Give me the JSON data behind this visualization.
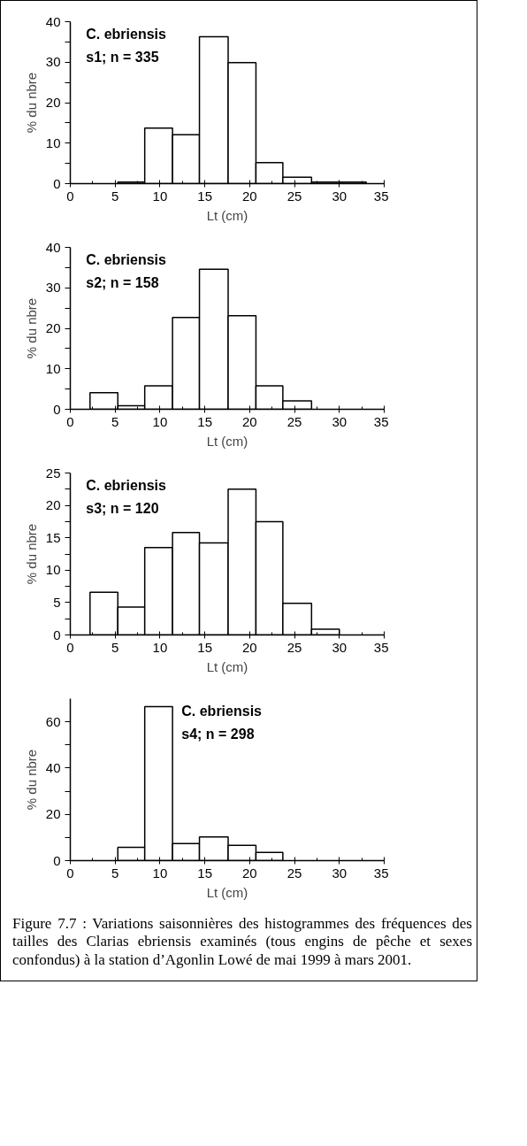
{
  "chart_data": [
    {
      "type": "histogram",
      "xlabel": "Lt (cm)",
      "ylabel": "% du nbre",
      "annotations": [
        "C. ebriensis\ns1; n = 335"
      ],
      "bins": [
        5.3,
        8.3,
        11.4,
        14.4,
        17.6,
        20.7,
        23.7,
        26.9,
        30.0,
        33.0
      ],
      "values": [
        0.4,
        13.7,
        12.1,
        36.3,
        29.9,
        5.2,
        1.6,
        0.4,
        0.4
      ],
      "color": "#ffffff",
      "xlim": [
        0,
        35
      ],
      "xticks": [
        0,
        5,
        10,
        15,
        20,
        25,
        30,
        35
      ],
      "ylim": [
        0,
        40
      ],
      "yticks": [
        0,
        10,
        20,
        30,
        40
      ],
      "grid": false
    },
    {
      "type": "histogram",
      "xlabel": "Lt (cm)",
      "ylabel": "% du nbre",
      "annotations": [
        "C. ebriensis\ns2; n = 158"
      ],
      "bins": [
        2.2,
        5.3,
        8.3,
        11.4,
        14.4,
        17.6,
        20.7,
        23.7,
        26.9
      ],
      "values": [
        4.1,
        0.9,
        5.8,
        22.7,
        34.6,
        23.1,
        5.8,
        2.1
      ],
      "color": "#ffffff",
      "xlim": [
        0,
        35
      ],
      "xticks": [
        0,
        5,
        10,
        15,
        20,
        25,
        30,
        35
      ],
      "ylim": [
        0,
        40
      ],
      "yticks": [
        0,
        10,
        20,
        30,
        40
      ],
      "grid": false
    },
    {
      "type": "histogram",
      "xlabel": "Lt (cm)",
      "ylabel": "% du nbre",
      "annotations": [
        "C. ebriensis\ns3; n = 120"
      ],
      "bins": [
        2.2,
        5.3,
        8.3,
        11.4,
        14.4,
        17.6,
        20.7,
        23.7,
        26.9,
        30.0
      ],
      "values": [
        6.6,
        4.3,
        13.5,
        15.8,
        14.2,
        22.5,
        17.5,
        4.9,
        0.9
      ],
      "color": "#ffffff",
      "xlim": [
        0,
        35
      ],
      "xticks": [
        0,
        5,
        10,
        15,
        20,
        25,
        30,
        35
      ],
      "ylim": [
        0,
        25
      ],
      "yticks": [
        0,
        5,
        10,
        15,
        20,
        25
      ],
      "grid": false
    },
    {
      "type": "histogram",
      "xlabel": "Lt (cm)",
      "ylabel": "% du nbre",
      "annotations": [
        "C. ebriensis\ns4; n = 298",
        "Figure 7.7 : Variations saisonnières des histogrammes des fréquences des tailles des Clarias ebriensis examinés (tous engins de pêche et sexes confondus) à la station d’Agonlin Lowé de mai 1999 à mars 2001."
      ],
      "bins": [
        5.3,
        8.3,
        11.4,
        14.4,
        17.6,
        20.7,
        23.7
      ],
      "values": [
        5.7,
        66.6,
        7.4,
        10.2,
        6.6,
        3.5
      ],
      "color": "#ffffff",
      "xlim": [
        0,
        35
      ],
      "xticks": [
        0,
        5,
        10,
        15,
        20,
        25,
        30,
        35
      ],
      "ylim": [
        0,
        70
      ],
      "yticks": [
        0,
        20,
        40,
        60
      ],
      "grid": false
    }
  ]
}
